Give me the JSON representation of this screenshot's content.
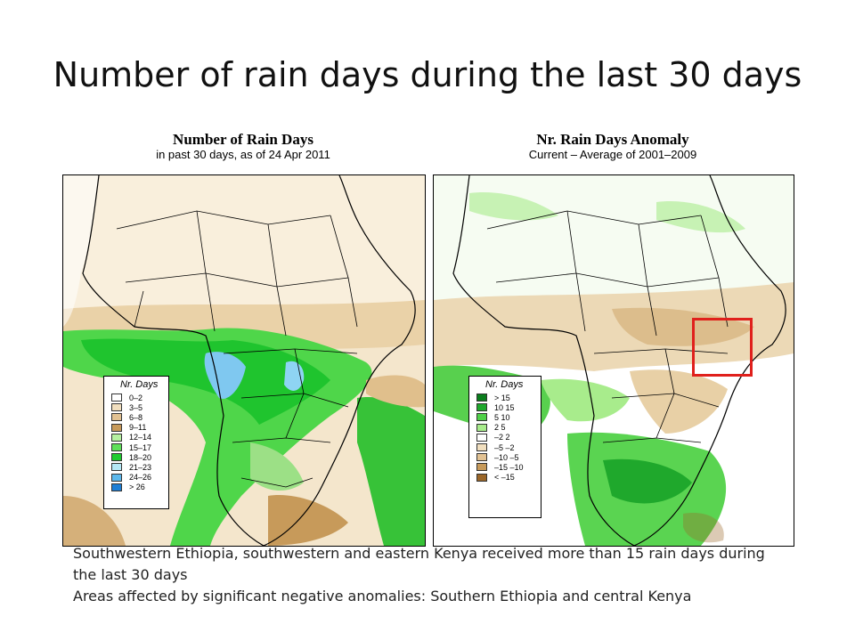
{
  "slide": {
    "title": "Number of rain days during the last 30 days"
  },
  "left_map": {
    "heading": "Number of Rain Days",
    "subheading": "in past 30 days, as of 24 Apr 2011",
    "legend_title": "Nr. Days",
    "legend": [
      {
        "label": "0–2",
        "color": "#ffffff"
      },
      {
        "label": "3–5",
        "color": "#f1dfbf"
      },
      {
        "label": "6–8",
        "color": "#e2c293"
      },
      {
        "label": "9–11",
        "color": "#c79a5a"
      },
      {
        "label": "12–14",
        "color": "#b5f0a0"
      },
      {
        "label": "15–17",
        "color": "#5fe05a"
      },
      {
        "label": "18–20",
        "color": "#1fcc30"
      },
      {
        "label": "21–23",
        "color": "#b4e8f5"
      },
      {
        "label": "24–26",
        "color": "#5cb8ec"
      },
      {
        "label": "> 26",
        "color": "#1e7fd6"
      }
    ]
  },
  "right_map": {
    "heading": "Nr. Rain Days Anomaly",
    "subheading": "Current – Average of 2001–2009",
    "legend_title": "Nr. Days",
    "legend": [
      {
        "label": "> 15",
        "color": "#0a7d1c"
      },
      {
        "label": "10  15",
        "color": "#1fa82c"
      },
      {
        "label": "5  10",
        "color": "#4fd048"
      },
      {
        "label": "2  5",
        "color": "#a8ec8c"
      },
      {
        "label": "–2  2",
        "color": "#ffffff"
      },
      {
        "label": "–5  –2",
        "color": "#f1dfbf"
      },
      {
        "label": "–10  –5",
        "color": "#e2c293"
      },
      {
        "label": "–15  –10",
        "color": "#c79a5a"
      },
      {
        "label": "< –15",
        "color": "#9a6628"
      }
    ],
    "highlight_color": "#e0201c"
  },
  "caption": {
    "line1": "Southwestern Ethiopia, southwestern and eastern Kenya received more than 15 rain days during the last 30 days",
    "line2": "Areas affected by significant negative anomalies: Southern Ethiopia and central Kenya"
  }
}
